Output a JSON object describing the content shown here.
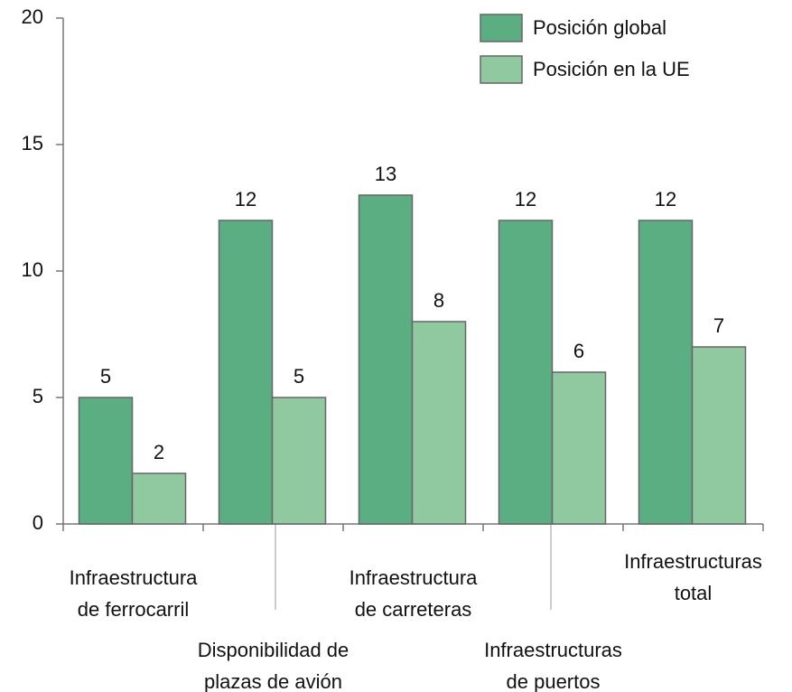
{
  "chart_data": {
    "type": "bar",
    "categories": [
      "Infraestructura\nde ferrocarril",
      "Disponibilidad de\nplazas de avión",
      "Infraestructura\nde carreteras",
      "Infraestructuras\nde puertos",
      "Infraestructuras\ntotal"
    ],
    "series": [
      {
        "name": "Posición global",
        "color": "#5aae82",
        "values": [
          5,
          12,
          13,
          12,
          12
        ]
      },
      {
        "name": "Posición en la UE",
        "color": "#90c8a0",
        "values": [
          2,
          5,
          8,
          6,
          7
        ]
      }
    ],
    "ylim": [
      0,
      20
    ],
    "yticks": [
      0,
      5,
      10,
      15,
      20
    ],
    "legend": "top-right"
  }
}
